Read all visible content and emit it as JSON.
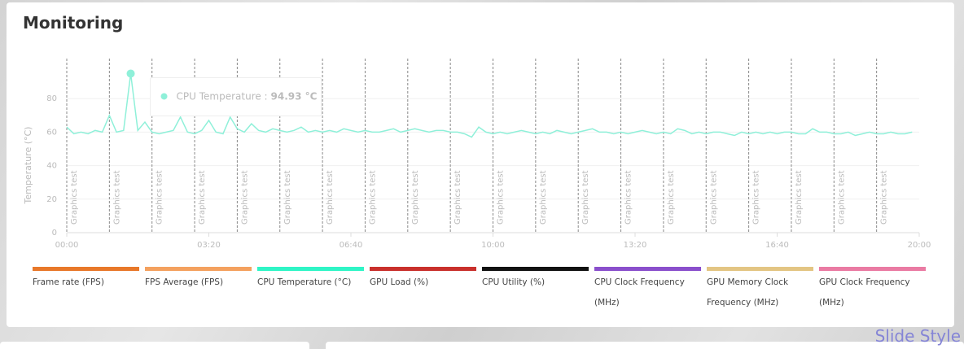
{
  "header": {
    "title": "Monitoring"
  },
  "chart_data": {
    "type": "line",
    "y_label": "Temperature (°C)",
    "xlim": [
      0,
      1200
    ],
    "ylim": [
      0,
      100
    ],
    "xticks": [
      {
        "value": 0,
        "label": "00:00"
      },
      {
        "value": 200,
        "label": "03:20"
      },
      {
        "value": 400,
        "label": "06:40"
      },
      {
        "value": 600,
        "label": "10:00"
      },
      {
        "value": 800,
        "label": "13:20"
      },
      {
        "value": 1000,
        "label": "16:40"
      },
      {
        "value": 1200,
        "label": "20:00"
      }
    ],
    "yticks": [
      0,
      20,
      40,
      60,
      80
    ],
    "grid": true,
    "annotations": [
      {
        "x": 0,
        "label": "Graphics test"
      },
      {
        "x": 60,
        "label": "Graphics test"
      },
      {
        "x": 120,
        "label": "Graphics test"
      },
      {
        "x": 180,
        "label": "Graphics test"
      },
      {
        "x": 240,
        "label": "Graphics test"
      },
      {
        "x": 300,
        "label": "Graphics test"
      },
      {
        "x": 360,
        "label": "Graphics test"
      },
      {
        "x": 420,
        "label": "Graphics test"
      },
      {
        "x": 480,
        "label": "Graphics test"
      },
      {
        "x": 540,
        "label": "Graphics test"
      },
      {
        "x": 600,
        "label": "Graphics test"
      },
      {
        "x": 660,
        "label": "Graphics test"
      },
      {
        "x": 720,
        "label": "Graphics test"
      },
      {
        "x": 780,
        "label": "Graphics test"
      },
      {
        "x": 840,
        "label": "Graphics test"
      },
      {
        "x": 900,
        "label": "Graphics test"
      },
      {
        "x": 960,
        "label": "Graphics test"
      },
      {
        "x": 1020,
        "label": "Graphics test"
      },
      {
        "x": 1080,
        "label": "Graphics test"
      },
      {
        "x": 1140,
        "label": "Graphics test"
      }
    ],
    "x": [
      0,
      10,
      20,
      30,
      40,
      50,
      60,
      70,
      80,
      90,
      100,
      110,
      120,
      130,
      140,
      150,
      160,
      170,
      180,
      190,
      200,
      210,
      220,
      230,
      240,
      250,
      260,
      270,
      280,
      290,
      300,
      310,
      320,
      330,
      340,
      350,
      360,
      370,
      380,
      390,
      400,
      410,
      420,
      430,
      440,
      450,
      460,
      470,
      480,
      490,
      500,
      510,
      520,
      530,
      540,
      550,
      560,
      570,
      580,
      590,
      600,
      610,
      620,
      630,
      640,
      650,
      660,
      670,
      680,
      690,
      700,
      710,
      720,
      730,
      740,
      750,
      760,
      770,
      780,
      790,
      800,
      810,
      820,
      830,
      840,
      850,
      860,
      870,
      880,
      890,
      900,
      910,
      920,
      930,
      940,
      950,
      960,
      970,
      980,
      990,
      1000,
      1010,
      1020,
      1030,
      1040,
      1050,
      1060,
      1070,
      1080,
      1090,
      1100,
      1110,
      1120,
      1130,
      1140,
      1150,
      1160,
      1170,
      1180,
      1190
    ],
    "series": [
      {
        "name": "Frame rate (FPS)",
        "color": "#e8782a",
        "values": null
      },
      {
        "name": "FPS Average (FPS)",
        "color": "#f4a15f",
        "values": null
      },
      {
        "name": "CPU Temperature (°C)",
        "color": "#2ff5c6",
        "line_color": "#8ff0d9",
        "values": [
          63,
          59,
          60,
          59,
          61,
          60,
          70,
          60,
          61,
          94.93,
          61,
          66,
          60,
          59,
          60,
          61,
          69,
          60,
          59,
          61,
          67,
          60,
          59,
          69,
          62,
          60,
          65,
          61,
          60,
          62,
          61,
          60,
          61,
          63,
          60,
          61,
          60,
          61,
          60,
          62,
          61,
          60,
          61,
          60,
          60,
          61,
          62,
          60,
          61,
          62,
          61,
          60,
          61,
          61,
          60,
          60,
          59,
          57,
          63,
          60,
          59,
          60,
          59,
          60,
          61,
          60,
          59,
          60,
          59,
          61,
          60,
          59,
          60,
          61,
          62,
          60,
          60,
          59,
          60,
          59,
          60,
          61,
          60,
          59,
          60,
          59,
          62,
          61,
          59,
          60,
          59,
          60,
          60,
          59,
          58,
          60,
          59,
          60,
          59,
          60,
          59,
          60,
          60,
          59,
          59,
          62,
          60,
          60,
          59,
          59,
          60,
          58,
          59,
          60,
          59,
          59,
          60,
          59,
          59,
          60
        ]
      },
      {
        "name": "GPU Load (%)",
        "color": "#c9302c",
        "values": null
      },
      {
        "name": "CPU Utility (%)",
        "color": "#111111",
        "values": null
      },
      {
        "name": "CPU Clock Frequency (MHz)",
        "color": "#8a4fcc",
        "values": null
      },
      {
        "name": "GPU Memory Clock Frequency (MHz)",
        "color": "#e3c583",
        "values": null
      },
      {
        "name": "GPU Clock Frequency (MHz)",
        "color": "#ea7ba3",
        "values": null
      }
    ],
    "tooltip_label": "CPU Temperature :",
    "tooltip_value": "94.93 °C"
  },
  "footer": {
    "brand": "Slide Style"
  }
}
